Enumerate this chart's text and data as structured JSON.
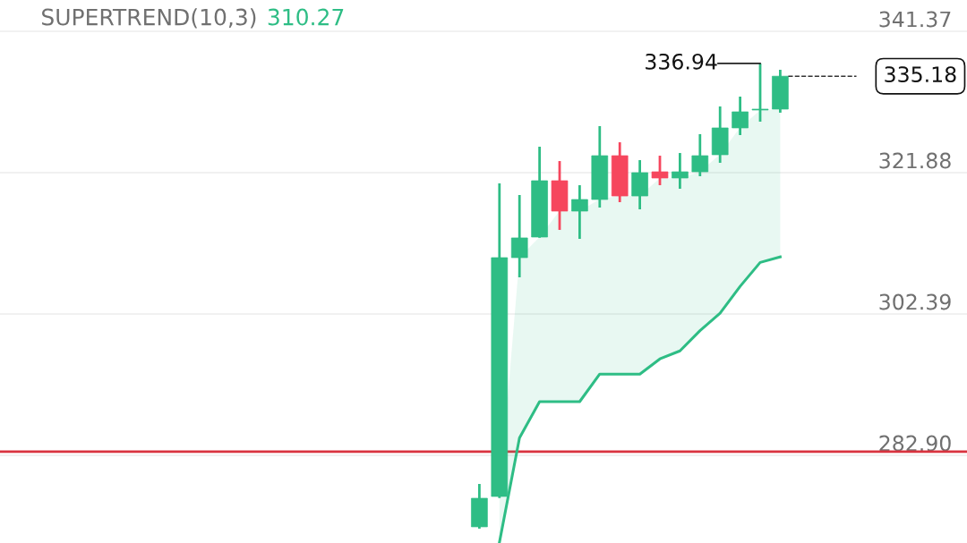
{
  "chart_data": {
    "type": "candlestick",
    "title": "SUPERTREND(10,3)",
    "subtitle": "310.27",
    "categories": [
      null,
      null,
      null,
      null,
      null,
      null,
      null,
      null,
      null,
      null,
      null,
      null,
      null,
      null,
      null,
      null,
      null,
      null,
      null,
      null,
      null,
      null,
      null,
      null,
      null,
      null,
      null
    ],
    "ohlc": [
      null,
      null,
      null,
      null,
      null,
      null,
      null,
      null,
      null,
      null,
      null,
      [
        273.04,
        278.95,
        272.79,
        276.98
      ],
      [
        277.23,
        320.4,
        277.0,
        310.16
      ],
      [
        310.16,
        318.8,
        307.45,
        312.88
      ],
      [
        313.0,
        325.46,
        312.9,
        320.77
      ],
      [
        320.77,
        323.48,
        313.99,
        316.58
      ],
      [
        316.58,
        320.15,
        312.75,
        318.18
      ],
      [
        318.18,
        328.3,
        317.07,
        324.22
      ],
      [
        324.22,
        326.07,
        317.81,
        318.67
      ],
      [
        318.67,
        323.61,
        316.82,
        321.88
      ],
      [
        322.0,
        324.22,
        320.15,
        321.14
      ],
      [
        321.14,
        324.59,
        319.66,
        322.0
      ],
      [
        322.0,
        327.19,
        321.39,
        324.22
      ],
      [
        324.35,
        331.01,
        323.24,
        328.05
      ],
      [
        328.05,
        332.37,
        327.06,
        330.27
      ],
      [
        330.52,
        336.94,
        328.91,
        330.64
      ],
      [
        330.64,
        336.07,
        330.15,
        335.18
      ]
    ],
    "colors": [
      null,
      null,
      null,
      null,
      null,
      null,
      null,
      null,
      null,
      null,
      null,
      "#2ebd85",
      "#2ebd85",
      "#2ebd85",
      "#2ebd85",
      "#f6465d",
      "#2ebd85",
      "#2ebd85",
      "#f6465d",
      "#2ebd85",
      "#f6465d",
      "#2ebd85",
      "#2ebd85",
      "#2ebd85",
      "#2ebd85",
      "#2ebd85",
      "#2ebd85"
    ],
    "series": [
      {
        "type": "line",
        "color": "#2ebd85",
        "values": [
          null,
          null,
          null,
          null,
          null,
          null,
          null,
          null,
          null,
          null,
          null,
          null,
          270.9,
          285.3,
          290.3,
          290.3,
          290.3,
          294.1,
          294.1,
          294.1,
          296.2,
          297.3,
          300.1,
          302.5,
          306.2,
          309.5,
          310.27
        ],
        "lower": [
          null,
          null,
          null,
          null,
          null,
          null,
          null,
          null,
          null,
          null,
          null,
          null,
          270.9,
          285.3,
          290.3,
          290.3,
          290.3,
          294.1,
          294.1,
          294.1,
          296.2,
          297.3,
          300.1,
          302.5,
          306.2,
          309.5,
          310.27
        ],
        "upper": [
          null,
          null,
          null,
          null,
          null,
          null,
          null,
          null,
          null,
          null,
          null,
          null,
          277.2,
          310.2,
          313.0,
          316.6,
          316.6,
          318.2,
          318.7,
          318.7,
          321.1,
          321.1,
          322.0,
          324.4,
          328.1,
          330.5,
          330.6
        ]
      }
    ],
    "ylim": [
      270.81,
      345.69
    ],
    "yticks": [
      341.37,
      321.88,
      302.39,
      {
        "value": 282.9,
        "label": "282.90"
      }
    ],
    "ref_lines": [
      {
        "axis": "y",
        "value": 283.4,
        "color": "#d9333f",
        "line_style": "solid"
      },
      {
        "axis": "y",
        "value": 335.18,
        "color": "#333333",
        "line_style": "dashed",
        "label": "335.18"
      }
    ],
    "annotations": [
      "336.94"
    ],
    "grid": "y",
    "tick_labels": "y"
  }
}
